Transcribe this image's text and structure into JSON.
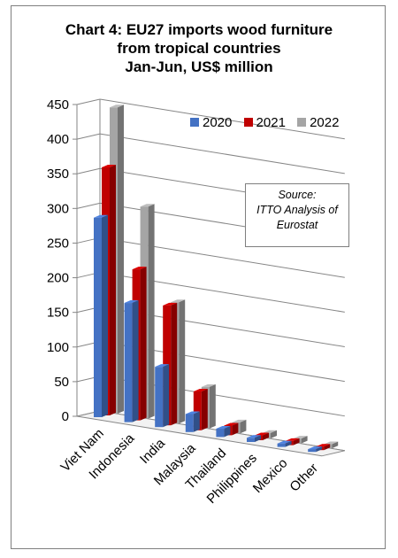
{
  "chart_data": {
    "type": "bar",
    "title_lines": [
      "Chart 4: EU27 imports wood furniture",
      "from tropical countries",
      "Jan-Jun, US$ million"
    ],
    "categories": [
      "Viet Nam",
      "Indonesia",
      "India",
      "Malaysia",
      "Thailand",
      "Philippines",
      "Mexico",
      "Other"
    ],
    "series": [
      {
        "name": "2020",
        "color": "#4472c4",
        "values": [
          288,
          172,
          87,
          26,
          12,
          6,
          5,
          4
        ]
      },
      {
        "name": "2021",
        "color": "#c00000",
        "values": [
          358,
          218,
          173,
          56,
          14,
          7,
          6,
          5
        ]
      },
      {
        "name": "2022",
        "color": "#a5a5a5",
        "values": [
          442,
          306,
          175,
          60,
          16,
          8,
          7,
          6
        ]
      }
    ],
    "yticks": [
      "0",
      "50",
      "100",
      "150",
      "200",
      "250",
      "300",
      "350",
      "400",
      "450"
    ],
    "ylim": [
      0,
      450
    ],
    "grid": true,
    "legend": "top-right",
    "annotation_lines": [
      "Source:",
      "ITTO Analysis of",
      "Eurostat"
    ]
  }
}
